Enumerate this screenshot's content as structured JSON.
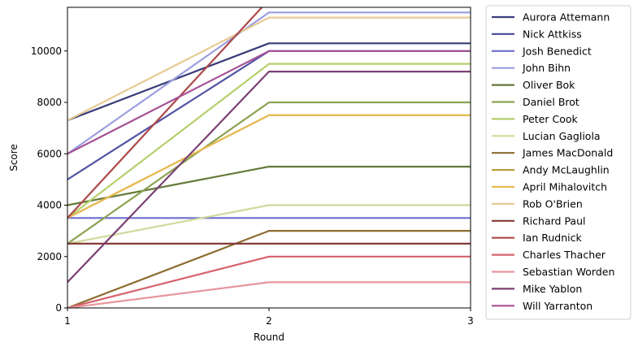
{
  "chart_data": {
    "type": "line",
    "title": "",
    "xlabel": "Round",
    "ylabel": "Score",
    "x": [
      1,
      2,
      3
    ],
    "xticks": [
      "1",
      "2",
      "3"
    ],
    "xlim": [
      1,
      3
    ],
    "ylim": [
      0,
      11700
    ],
    "yticks": [
      0,
      2000,
      4000,
      6000,
      8000,
      10000
    ],
    "yticklabels": [
      "0",
      "2000",
      "4000",
      "6000",
      "8000",
      "10000"
    ],
    "grid": false,
    "legend_placement": "outside-right",
    "series": [
      {
        "name": "Aurora Attemann",
        "color": "#393b79",
        "values": [
          7300,
          10300,
          10300
        ]
      },
      {
        "name": "Nick Attkiss",
        "color": "#5254a3",
        "values": [
          5000,
          10000,
          10000
        ]
      },
      {
        "name": "Josh Benedict",
        "color": "#6b6ecf",
        "values": [
          3500,
          3500,
          3500
        ]
      },
      {
        "name": "John Bihn",
        "color": "#9c9ede",
        "values": [
          6000,
          11500,
          11500
        ]
      },
      {
        "name": "Oliver Bok",
        "color": "#637939",
        "values": [
          4000,
          5500,
          5500
        ]
      },
      {
        "name": "Daniel Brot",
        "color": "#8ca252",
        "values": [
          2500,
          8000,
          8000
        ]
      },
      {
        "name": "Peter Cook",
        "color": "#b5cf6b",
        "values": [
          3500,
          9500,
          9500
        ]
      },
      {
        "name": "Lucian Gagliola",
        "color": "#cedb9c",
        "values": [
          2500,
          4000,
          4000
        ]
      },
      {
        "name": "James MacDonald",
        "color": "#8c6d31",
        "values": [
          0,
          3000,
          3000
        ]
      },
      {
        "name": "Andy McLaughlin",
        "color": "#bd9e39",
        "values": [
          3500,
          7500,
          7500
        ]
      },
      {
        "name": "April Mihalovitch",
        "color": "#e7ba52",
        "values": [
          3500,
          7500,
          7500
        ]
      },
      {
        "name": "Rob O'Brien",
        "color": "#e7cb94",
        "values": [
          7300,
          11300,
          11300
        ]
      },
      {
        "name": "Richard Paul",
        "color": "#843c39",
        "values": [
          2500,
          2500,
          2500
        ]
      },
      {
        "name": "Ian Rudnick",
        "color": "#ad494a",
        "values": [
          3500,
          12000,
          12000
        ]
      },
      {
        "name": "Charles Thacher",
        "color": "#d6616b",
        "values": [
          0,
          2000,
          2000
        ]
      },
      {
        "name": "Sebastian Worden",
        "color": "#e7969c",
        "values": [
          0,
          1000,
          1000
        ]
      },
      {
        "name": "Mike Yablon",
        "color": "#7b4173",
        "values": [
          1000,
          9200,
          9200
        ]
      },
      {
        "name": "Will Yarranton",
        "color": "#a55194",
        "values": [
          6000,
          10000,
          10000
        ]
      }
    ]
  }
}
